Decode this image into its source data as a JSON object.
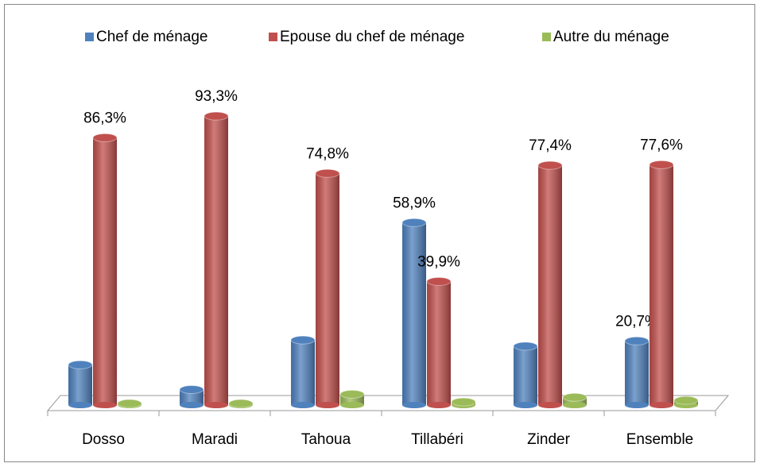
{
  "chart_data": {
    "type": "bar",
    "categories": [
      "Dosso",
      "Maradi",
      "Tahoua",
      "Tillabéri",
      "Zinder",
      "Ensemble"
    ],
    "series": [
      {
        "name": "Chef de ménage",
        "color": "#4f81bd",
        "values": [
          13,
          5,
          21,
          58.9,
          19,
          20.7
        ],
        "value_labels": [
          null,
          null,
          null,
          "58,9%",
          null,
          "20,7%"
        ]
      },
      {
        "name": "Epouse du chef de ménage",
        "color": "#c0504d",
        "values": [
          86.3,
          93.3,
          74.8,
          39.9,
          77.4,
          77.6
        ],
        "value_labels": [
          "86,3%",
          "93,3%",
          "74,8%",
          "39,9%",
          "77,4%",
          "77,6%"
        ]
      },
      {
        "name": "Autre du ménage",
        "color": "#9bbb59",
        "values": [
          0.5,
          0.5,
          3.5,
          1,
          2.5,
          1.5
        ],
        "value_labels": [
          null,
          null,
          null,
          null,
          null,
          null
        ]
      }
    ],
    "legend": "top"
  }
}
